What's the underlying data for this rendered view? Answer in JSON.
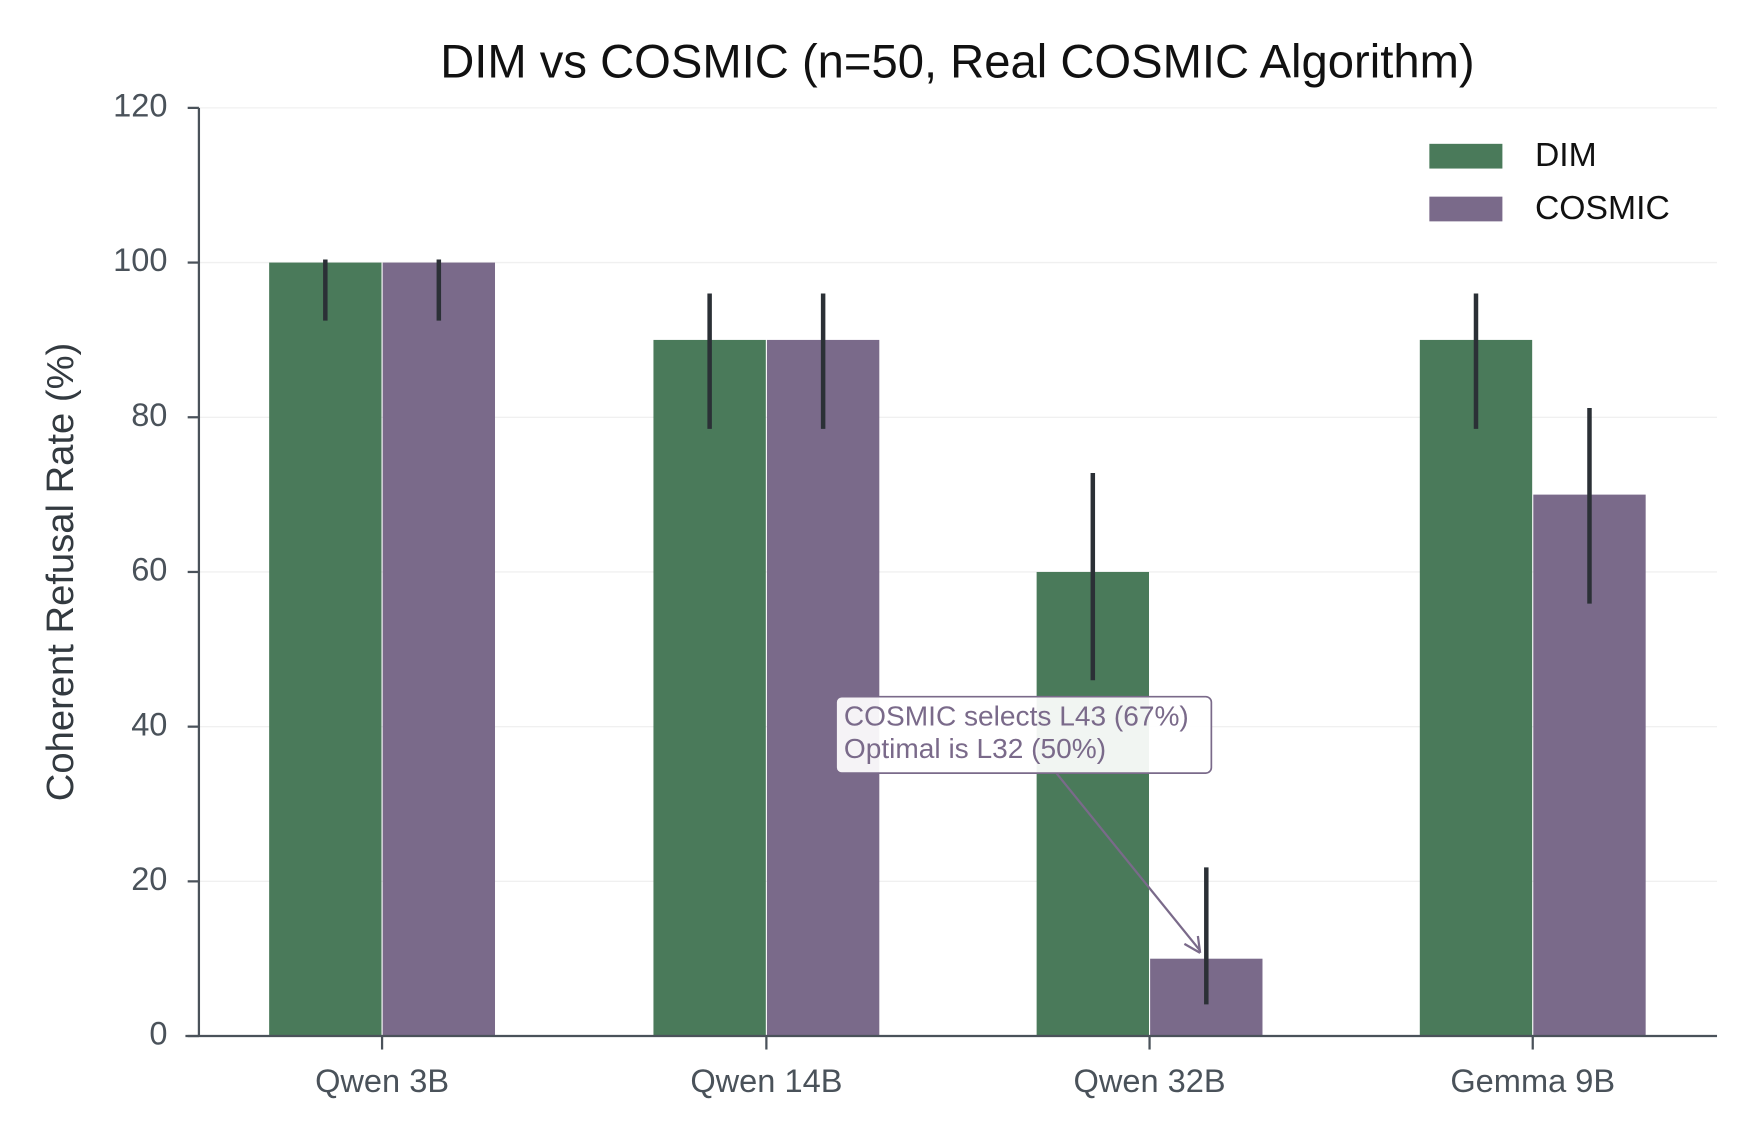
{
  "chart_data": {
    "type": "bar",
    "title": "DIM vs COSMIC (n=50, Real COSMIC Algorithm)",
    "ylabel": "Coherent Refusal Rate (%)",
    "categories": [
      "Qwen 3B",
      "Qwen 14B",
      "Qwen 32B",
      "Gemma 9B"
    ],
    "series": [
      {
        "name": "DIM",
        "color": "#4a7a5a",
        "values": [
          100,
          90,
          60,
          90
        ],
        "ci_lower": [
          92.5,
          78.5,
          46,
          78.5
        ],
        "ci_upper": [
          100.4,
          96,
          72.8,
          96
        ]
      },
      {
        "name": "COSMIC",
        "color": "#7a6a8a",
        "values": [
          100,
          90,
          10,
          70
        ],
        "ci_lower": [
          92.5,
          78.5,
          4.1,
          55.9
        ],
        "ci_upper": [
          100.4,
          96,
          21.8,
          81.2
        ]
      }
    ],
    "ylim": [
      0,
      120
    ],
    "yticks": [
      0,
      20,
      40,
      60,
      80,
      100,
      120
    ],
    "grid": true,
    "legend": "upper right",
    "annotation": {
      "lines": [
        "COSMIC selects L43 (67%)",
        "Optimal is L32 (50%)"
      ],
      "color": "#7a6a8a"
    }
  }
}
